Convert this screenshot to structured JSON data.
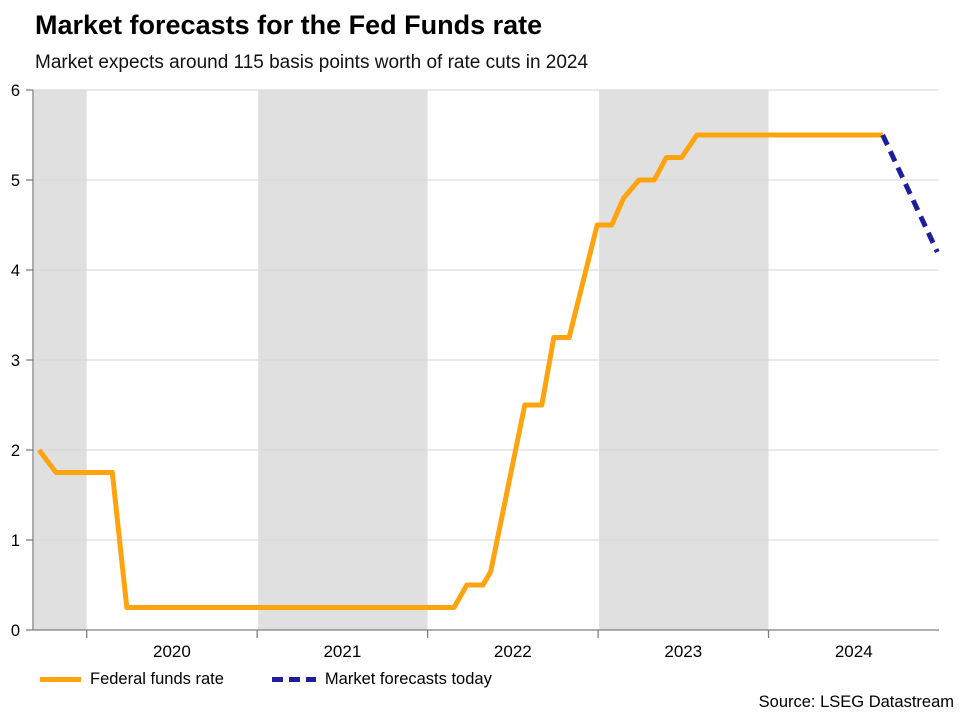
{
  "header": {
    "title": "Market forecasts for the Fed Funds rate",
    "subtitle": "Market expects around 115 basis points worth of rate cuts in 2024"
  },
  "source_text": "Source: LSEG Datastream",
  "colors": {
    "actual_line": "#FFA30F",
    "forecast_line": "#1E1E9C",
    "shaded_band": "#E0E0E0",
    "gridline": "#D6D6D6",
    "axis": "#7F7F7F",
    "text": "#000000"
  },
  "legend": [
    {
      "label": "Federal funds rate",
      "style": "solid",
      "color": "#FFA30F"
    },
    {
      "label": "Market forecasts today",
      "style": "dashed",
      "color": "#1E1E9C"
    }
  ],
  "chart_data": {
    "type": "line",
    "title": "Market forecasts for the Fed Funds rate",
    "subtitle": "Market expects around 115 basis points worth of rate cuts in 2024",
    "xlabel": "",
    "ylabel": "",
    "x_domain": [
      2019.685,
      2025.0
    ],
    "ylim": [
      0,
      6
    ],
    "yticks": [
      0,
      1,
      2,
      3,
      4,
      5,
      6
    ],
    "ytick_labels": [
      "0",
      "1",
      "2",
      "3",
      "4",
      "5",
      "6"
    ],
    "year_boundary_ticks": [
      2020,
      2021,
      2022,
      2023,
      2024
    ],
    "year_labels": [
      {
        "label": "2020",
        "center": 2020.5
      },
      {
        "label": "2021",
        "center": 2021.5
      },
      {
        "label": "2022",
        "center": 2022.5
      },
      {
        "label": "2023",
        "center": 2023.5
      },
      {
        "label": "2024",
        "center": 2024.5
      }
    ],
    "shaded_bands": [
      [
        2019.685,
        2020.0
      ],
      [
        2021.0,
        2022.0
      ],
      [
        2023.0,
        2024.0
      ]
    ],
    "grid": true,
    "legend_position": "bottom-left",
    "series": [
      {
        "name": "Federal funds rate",
        "style": "solid",
        "color": "#FFA30F",
        "points": [
          [
            2019.72,
            2.0
          ],
          [
            2019.82,
            1.75
          ],
          [
            2020.15,
            1.75
          ],
          [
            2020.235,
            0.25
          ],
          [
            2022.155,
            0.25
          ],
          [
            2022.23,
            0.5
          ],
          [
            2022.325,
            0.5
          ],
          [
            2022.37,
            0.65
          ],
          [
            2022.57,
            2.5
          ],
          [
            2022.67,
            2.5
          ],
          [
            2022.74,
            3.25
          ],
          [
            2022.83,
            3.25
          ],
          [
            2022.995,
            4.5
          ],
          [
            2023.08,
            4.5
          ],
          [
            2023.15,
            4.8
          ],
          [
            2023.24,
            5.0
          ],
          [
            2023.33,
            5.0
          ],
          [
            2023.4,
            5.25
          ],
          [
            2023.49,
            5.25
          ],
          [
            2023.58,
            5.5
          ],
          [
            2024.67,
            5.5
          ]
        ]
      },
      {
        "name": "Market forecasts today",
        "style": "dashed",
        "color": "#1E1E9C",
        "points": [
          [
            2024.67,
            5.5
          ],
          [
            2024.99,
            4.2
          ]
        ]
      }
    ]
  }
}
